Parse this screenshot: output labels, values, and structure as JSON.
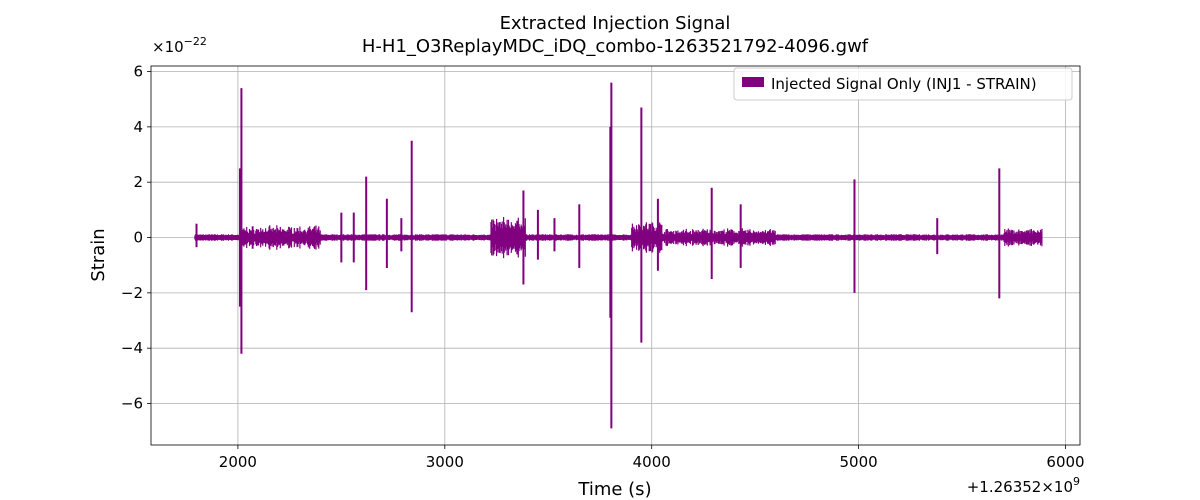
{
  "chart_data": {
    "type": "line",
    "title_line1": "Extracted Injection Signal",
    "title_line2": "H-H1_O3ReplayMDC_iDQ_combo-1263521792-4096.gwf",
    "xlabel": "Time (s)",
    "ylabel": "Strain",
    "y_multiplier_base": "×10",
    "y_multiplier_exp": "−22",
    "x_offset_base": "+1.26352×10",
    "x_offset_exp": "9",
    "xlim": [
      1580,
      6070
    ],
    "ylim": [
      -7.5,
      6.2
    ],
    "x_ticks": [
      2000,
      3000,
      4000,
      5000,
      6000
    ],
    "x_tick_labels": [
      "2000",
      "3000",
      "4000",
      "5000",
      "6000"
    ],
    "y_ticks": [
      -6,
      -4,
      -2,
      0,
      2,
      4,
      6
    ],
    "y_tick_labels": [
      "−6",
      "−4",
      "−2",
      "0",
      "2",
      "4",
      "6"
    ],
    "grid": true,
    "legend_position": "top-right",
    "series": [
      {
        "name": "Injected Signal Only (INJ1 - STRAIN)",
        "color": "#800080",
        "x_range": [
          1792,
          5888
        ],
        "baseline_amplitude": 0.12,
        "noisy_bands": [
          {
            "range": [
              2020,
              2400
            ],
            "amplitude": 0.45
          },
          {
            "range": [
              3220,
              3390
            ],
            "amplitude": 0.8
          },
          {
            "range": [
              3900,
              4050
            ],
            "amplitude": 0.65
          },
          {
            "range": [
              4050,
              4600
            ],
            "amplitude": 0.35
          },
          {
            "range": [
              5700,
              5888
            ],
            "amplitude": 0.35
          }
        ],
        "spikes": [
          {
            "x": 1800,
            "max": 0.5,
            "min": -0.35
          },
          {
            "x": 2010,
            "max": 2.5,
            "min": -2.5
          },
          {
            "x": 2017,
            "max": 5.4,
            "min": -4.2
          },
          {
            "x": 2500,
            "max": 0.9,
            "min": -0.9
          },
          {
            "x": 2560,
            "max": 0.9,
            "min": -0.9
          },
          {
            "x": 2620,
            "max": 2.2,
            "min": -1.9
          },
          {
            "x": 2720,
            "max": 1.4,
            "min": -1.1
          },
          {
            "x": 2790,
            "max": 0.7,
            "min": -0.5
          },
          {
            "x": 2840,
            "max": 3.5,
            "min": -2.7
          },
          {
            "x": 3380,
            "max": 1.7,
            "min": -1.7
          },
          {
            "x": 3450,
            "max": 1.0,
            "min": -0.8
          },
          {
            "x": 3530,
            "max": 0.7,
            "min": -0.5
          },
          {
            "x": 3650,
            "max": 1.2,
            "min": -1.1
          },
          {
            "x": 3800,
            "max": 4.0,
            "min": -2.9
          },
          {
            "x": 3805,
            "max": 5.6,
            "min": -6.9
          },
          {
            "x": 3950,
            "max": 4.7,
            "min": -3.8
          },
          {
            "x": 4030,
            "max": 1.4,
            "min": -1.2
          },
          {
            "x": 4290,
            "max": 1.8,
            "min": -1.5
          },
          {
            "x": 4430,
            "max": 1.2,
            "min": -1.1
          },
          {
            "x": 4980,
            "max": 2.1,
            "min": -2.0
          },
          {
            "x": 5380,
            "max": 0.7,
            "min": -0.6
          },
          {
            "x": 5680,
            "max": 2.5,
            "min": -2.2
          }
        ]
      }
    ]
  }
}
